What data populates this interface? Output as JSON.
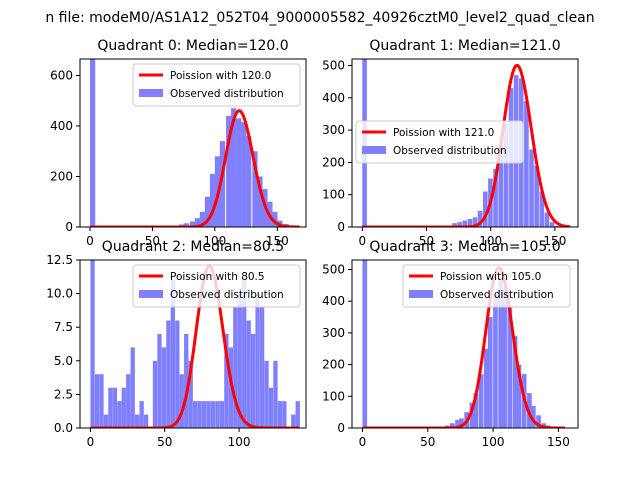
{
  "figure": {
    "suptitle": "n file: modeM0/AS1A12_052T04_9000005582_40926cztM0_level2_quad_clean"
  },
  "colors": {
    "histogram": "#8080ff",
    "poisson_line": "#ff0000",
    "axes": "#000000"
  },
  "chart_data": [
    {
      "type": "bar",
      "title": "Quadrant 0: Median=120.0",
      "xlim": [
        -8,
        173
      ],
      "ylim": [
        0,
        665
      ],
      "xticks": [
        0,
        50,
        100,
        150
      ],
      "yticks": [
        0,
        200,
        400,
        600
      ],
      "xtick_labels": [
        "0",
        "50",
        "100",
        "150"
      ],
      "ytick_labels": [
        "0",
        "200",
        "400",
        "600"
      ],
      "legend_position": "upper-right",
      "legend": [
        "Poission with 120.0",
        "Observed distribution"
      ],
      "bin_width": 4.2,
      "hist_x": [
        0,
        67,
        71,
        75,
        80,
        84,
        88,
        92,
        96,
        100,
        104,
        109,
        113,
        117,
        121,
        125,
        130,
        134,
        138,
        142,
        146,
        150,
        155,
        159,
        163
      ],
      "hist_y": [
        665,
        5,
        10,
        15,
        22,
        35,
        60,
        120,
        210,
        280,
        340,
        440,
        470,
        430,
        415,
        360,
        300,
        200,
        150,
        100,
        60,
        25,
        12,
        5,
        2
      ],
      "poisson_mean": 120.0,
      "poisson_peak": 460,
      "poisson_xrange": [
        0,
        168
      ]
    },
    {
      "type": "bar",
      "title": "Quadrant 1: Median=121.0",
      "xlim": [
        -8,
        168
      ],
      "ylim": [
        0,
        520
      ],
      "xticks": [
        0,
        50,
        100,
        150
      ],
      "yticks": [
        0,
        100,
        200,
        300,
        400,
        500
      ],
      "xtick_labels": [
        "0",
        "50",
        "100",
        "150"
      ],
      "ytick_labels": [
        "0",
        "100",
        "200",
        "300",
        "400",
        "500"
      ],
      "legend_position": "center-right",
      "legend": [
        "Poission with 121.0",
        "Observed distribution"
      ],
      "bin_width": 3.6,
      "hist_x": [
        0,
        63,
        70,
        74,
        78,
        82,
        86,
        90,
        94,
        98,
        102,
        106,
        110,
        114,
        118,
        122,
        126,
        130,
        134,
        138,
        142,
        146,
        150
      ],
      "hist_y": [
        520,
        4,
        12,
        15,
        20,
        25,
        30,
        50,
        110,
        150,
        180,
        250,
        320,
        430,
        470,
        460,
        390,
        240,
        190,
        110,
        45,
        15,
        4
      ],
      "poisson_mean": 121.0,
      "poisson_peak": 500,
      "poisson_xrange": [
        0,
        162
      ]
    },
    {
      "type": "bar",
      "title": "Quadrant 2: Median=80.5",
      "xlim": [
        -7,
        145
      ],
      "ylim": [
        0,
        12.5
      ],
      "xticks": [
        0,
        50,
        100
      ],
      "yticks": [
        0.0,
        2.5,
        5.0,
        7.5,
        10.0,
        12.5
      ],
      "xtick_labels": [
        "0",
        "50",
        "100"
      ],
      "ytick_labels": [
        "0.0",
        "2.5",
        "5.0",
        "7.5",
        "10.0",
        "12.5"
      ],
      "legend_position": "upper-right",
      "legend": [
        "Poission with 80.5",
        "Observed distribution"
      ],
      "bin_width": 2.9,
      "hist_x": [
        0,
        3,
        6,
        9,
        12,
        15,
        18,
        21,
        24,
        27,
        30,
        33,
        36,
        42,
        45,
        48,
        51,
        54,
        57,
        60,
        63,
        66,
        69,
        72,
        75,
        78,
        81,
        84,
        87,
        90,
        93,
        96,
        99,
        102,
        105,
        108,
        111,
        114,
        117,
        120,
        123,
        126,
        129,
        135,
        138
      ],
      "hist_y": [
        12.5,
        4,
        4,
        1,
        3,
        3,
        2,
        3,
        4,
        6,
        1,
        2,
        1,
        5,
        7,
        6,
        8,
        11,
        8,
        4,
        7,
        5,
        2,
        2,
        2,
        2,
        2,
        2,
        2,
        7,
        6,
        9,
        10,
        11,
        8,
        7,
        10,
        9,
        5,
        3,
        5,
        2,
        2,
        1,
        2
      ],
      "poisson_mean": 80.5,
      "poisson_peak": 12,
      "poisson_xrange": [
        0,
        140
      ]
    },
    {
      "type": "bar",
      "title": "Quadrant 3: Median=105.0",
      "xlim": [
        -8,
        165
      ],
      "ylim": [
        0,
        530
      ],
      "xticks": [
        0,
        50,
        100,
        150
      ],
      "yticks": [
        0,
        100,
        200,
        300,
        400,
        500
      ],
      "xtick_labels": [
        "0",
        "50",
        "100",
        "150"
      ],
      "ytick_labels": [
        "0",
        "100",
        "200",
        "300",
        "400",
        "500"
      ],
      "legend_position": "upper-right",
      "legend": [
        "Poission with 105.0",
        "Observed distribution"
      ],
      "bin_width": 3.6,
      "hist_x": [
        0,
        52,
        56,
        63,
        67,
        71,
        74,
        78,
        82,
        85,
        89,
        93,
        96,
        100,
        104,
        107,
        111,
        115,
        118,
        122,
        126,
        129,
        133,
        137,
        140,
        144
      ],
      "hist_y": [
        530,
        3,
        4,
        8,
        15,
        25,
        30,
        50,
        80,
        110,
        170,
        250,
        350,
        420,
        470,
        440,
        380,
        290,
        200,
        170,
        110,
        70,
        40,
        15,
        8,
        3
      ],
      "poisson_mean": 105.0,
      "poisson_peak": 505,
      "poisson_xrange": [
        0,
        155
      ]
    }
  ]
}
